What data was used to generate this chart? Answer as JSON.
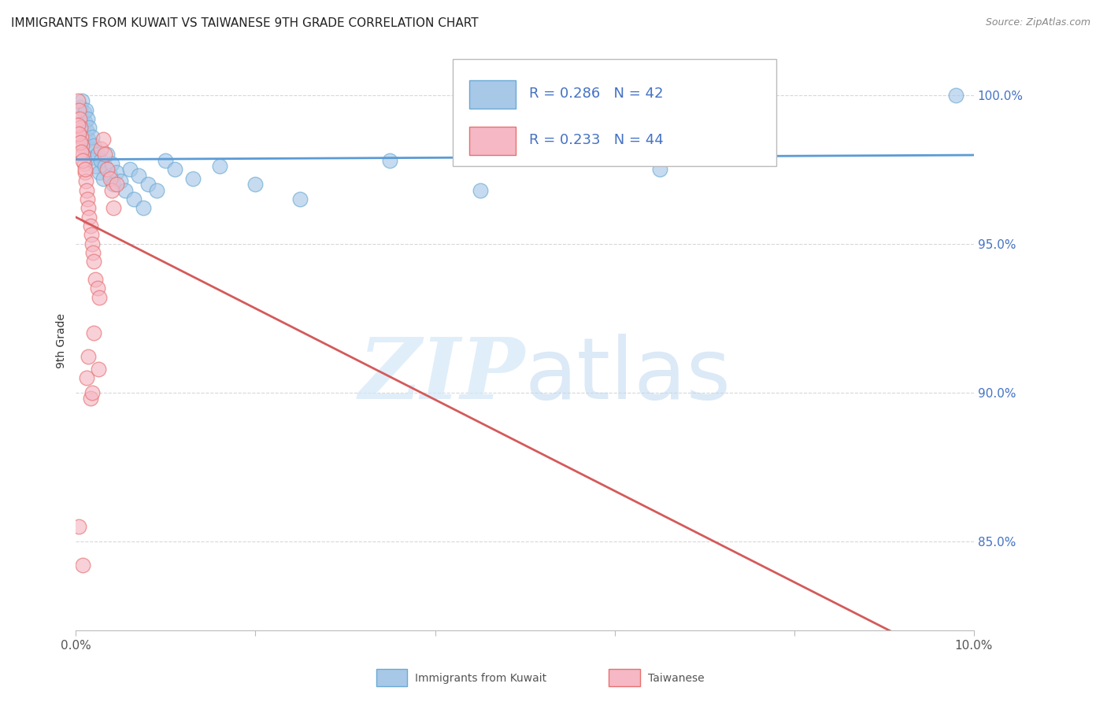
{
  "title": "IMMIGRANTS FROM KUWAIT VS TAIWANESE 9TH GRADE CORRELATION CHART",
  "source": "Source: ZipAtlas.com",
  "ylabel": "9th Grade",
  "xlim": [
    0.0,
    10.0
  ],
  "ylim": [
    82.0,
    101.5
  ],
  "yticks": [
    85.0,
    90.0,
    95.0,
    100.0
  ],
  "ytick_labels": [
    "85.0%",
    "90.0%",
    "95.0%",
    "100.0%"
  ],
  "xticks": [
    0.0,
    2.0,
    4.0,
    6.0,
    8.0,
    10.0
  ],
  "xtick_labels": [
    "0.0%",
    "",
    "",
    "",
    "",
    "10.0%"
  ],
  "blue_R": 0.286,
  "blue_N": 42,
  "pink_R": 0.233,
  "pink_N": 44,
  "blue_color": "#a8c8e8",
  "pink_color": "#f5b8c4",
  "blue_edge_color": "#6aaad4",
  "pink_edge_color": "#e87070",
  "blue_line_color": "#5b9bd5",
  "pink_line_color": "#d45a5a",
  "legend_label_blue": "Immigrants from Kuwait",
  "legend_label_pink": "Taiwanese",
  "watermark_zip": "ZIP",
  "watermark_atlas": "atlas",
  "background_color": "#ffffff",
  "grid_color": "#d8d8d8",
  "blue_dots_x": [
    0.05,
    0.07,
    0.09,
    0.1,
    0.11,
    0.12,
    0.13,
    0.14,
    0.15,
    0.16,
    0.18,
    0.19,
    0.2,
    0.22,
    0.24,
    0.26,
    0.28,
    0.3,
    0.32,
    0.35,
    0.38,
    0.4,
    0.42,
    0.45,
    0.5,
    0.55,
    0.6,
    0.65,
    0.7,
    0.75,
    0.8,
    0.9,
    1.0,
    1.1,
    1.3,
    1.6,
    2.0,
    2.5,
    3.5,
    4.5,
    6.5,
    9.8
  ],
  "blue_dots_y": [
    99.6,
    99.8,
    99.4,
    99.1,
    99.5,
    98.8,
    99.2,
    98.5,
    98.9,
    98.2,
    98.6,
    97.9,
    98.3,
    97.6,
    98.0,
    97.4,
    97.8,
    97.2,
    97.6,
    98.0,
    97.3,
    97.7,
    97.0,
    97.4,
    97.1,
    96.8,
    97.5,
    96.5,
    97.3,
    96.2,
    97.0,
    96.8,
    97.8,
    97.5,
    97.2,
    97.6,
    97.0,
    96.5,
    97.8,
    96.8,
    97.5,
    100.0
  ],
  "pink_dots_x": [
    0.02,
    0.03,
    0.04,
    0.05,
    0.06,
    0.07,
    0.08,
    0.09,
    0.1,
    0.11,
    0.12,
    0.13,
    0.14,
    0.15,
    0.16,
    0.17,
    0.18,
    0.19,
    0.2,
    0.22,
    0.24,
    0.26,
    0.28,
    0.3,
    0.32,
    0.35,
    0.38,
    0.4,
    0.42,
    0.45,
    0.02,
    0.03,
    0.05,
    0.06,
    0.08,
    0.1,
    0.12,
    0.14,
    0.16,
    0.18,
    0.2,
    0.25,
    0.03,
    0.08
  ],
  "pink_dots_y": [
    99.8,
    99.5,
    99.2,
    98.9,
    98.6,
    98.3,
    98.0,
    97.7,
    97.4,
    97.1,
    96.8,
    96.5,
    96.2,
    95.9,
    95.6,
    95.3,
    95.0,
    94.7,
    94.4,
    93.8,
    93.5,
    93.2,
    98.2,
    98.5,
    98.0,
    97.5,
    97.2,
    96.8,
    96.2,
    97.0,
    99.0,
    98.7,
    98.4,
    98.1,
    97.8,
    97.5,
    90.5,
    91.2,
    89.8,
    90.0,
    92.0,
    90.8,
    85.5,
    84.2
  ]
}
